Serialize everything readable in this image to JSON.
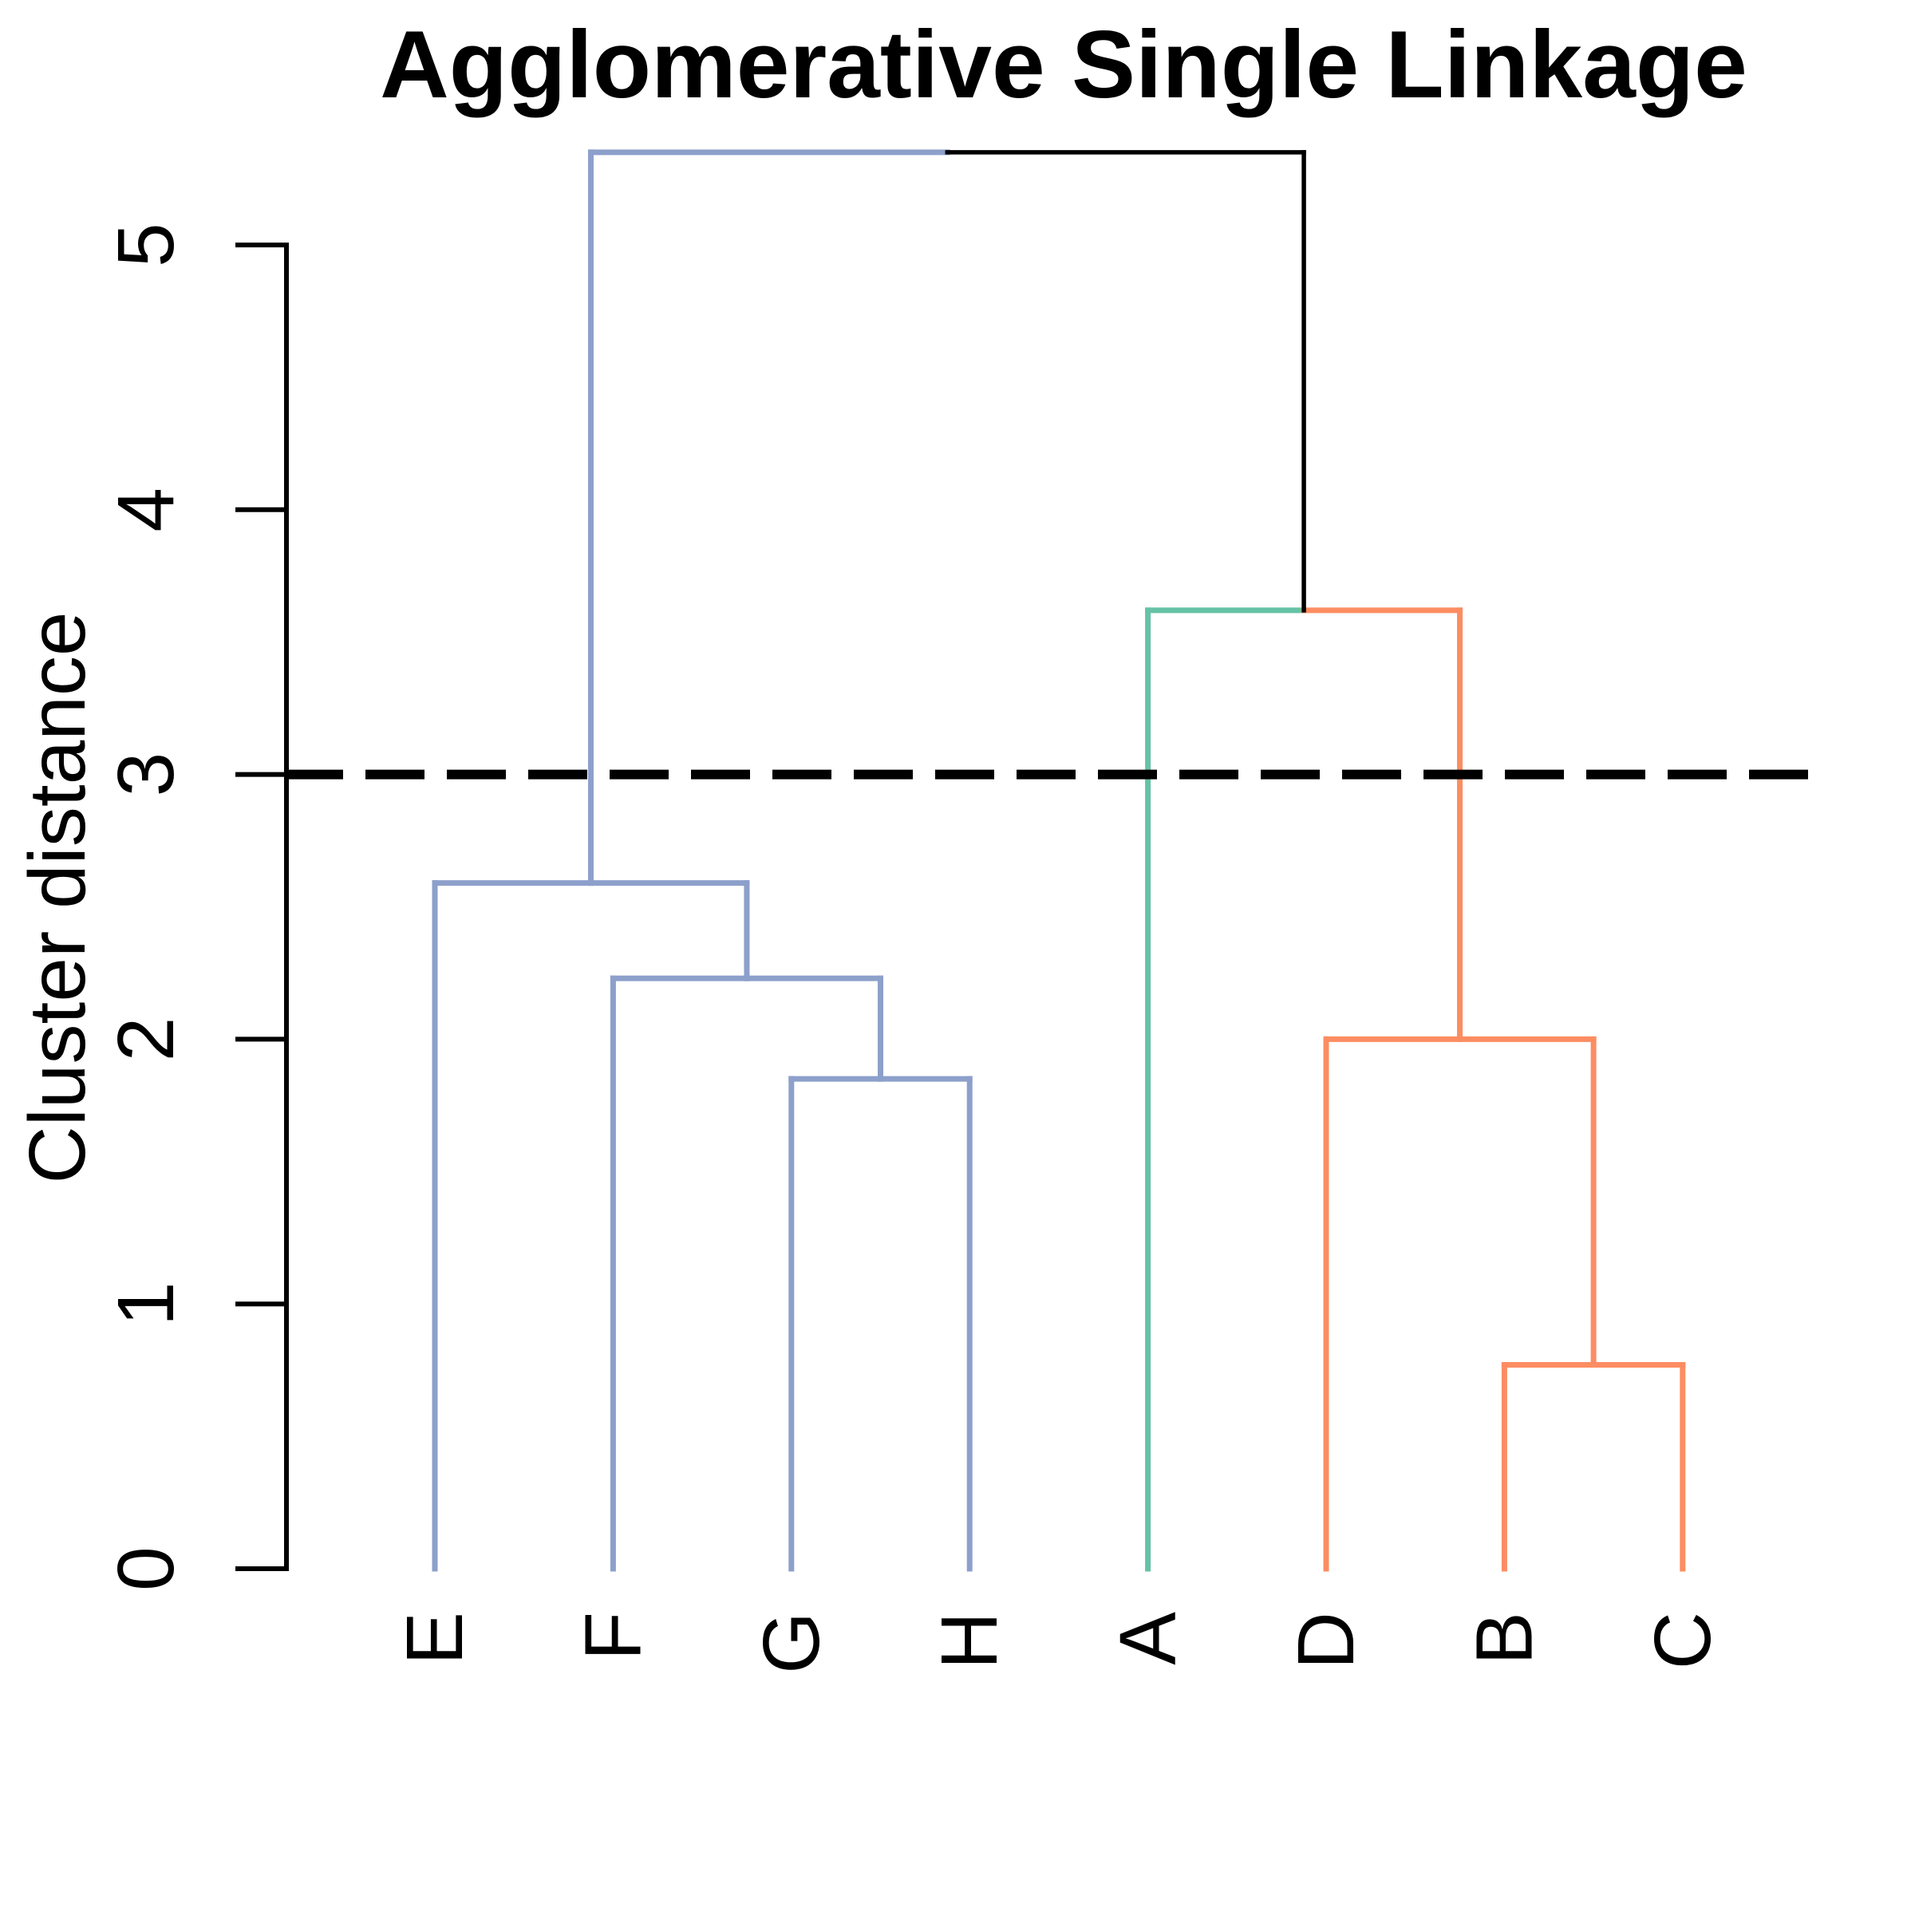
{
  "title": "Agglomerative Single Linkage",
  "y_axis": {
    "label": "Cluster distance",
    "ticks": [
      "0",
      "1",
      "2",
      "3",
      "4",
      "5"
    ]
  },
  "colors": {
    "blue_cluster": "#8DA0CB",
    "green_cluster": "#66C2A5",
    "orange_cluster": "#FC8D62",
    "root_link": "#000000",
    "cut_line": "#000000"
  },
  "chart_data": {
    "type": "dendrogram",
    "title": "Agglomerative Single Linkage",
    "ylabel": "Cluster distance",
    "xlabel": "",
    "yticks": [
      0,
      1,
      2,
      3,
      4,
      5
    ],
    "ylim": [
      0,
      5.5
    ],
    "grid": false,
    "leaf_order": [
      "E",
      "F",
      "G",
      "H",
      "A",
      "D",
      "B",
      "C"
    ],
    "leaves": [
      {
        "label": "E",
        "color": "#8DA0CB"
      },
      {
        "label": "F",
        "color": "#8DA0CB"
      },
      {
        "label": "G",
        "color": "#8DA0CB"
      },
      {
        "label": "H",
        "color": "#8DA0CB"
      },
      {
        "label": "A",
        "color": "#66C2A5"
      },
      {
        "label": "D",
        "color": "#FC8D62"
      },
      {
        "label": "B",
        "color": "#FC8D62"
      },
      {
        "label": "C",
        "color": "#FC8D62"
      }
    ],
    "merges": [
      {
        "id": "GH",
        "children": [
          "G",
          "H"
        ],
        "height": 1.85,
        "color": "#8DA0CB"
      },
      {
        "id": "FGH",
        "children": [
          "F",
          "GH"
        ],
        "height": 2.23,
        "color": "#8DA0CB"
      },
      {
        "id": "EFGH",
        "children": [
          "E",
          "FGH"
        ],
        "height": 2.59,
        "color": "#8DA0CB"
      },
      {
        "id": "BC",
        "children": [
          "B",
          "C"
        ],
        "height": 0.77,
        "color": "#FC8D62"
      },
      {
        "id": "DBC",
        "children": [
          "D",
          "BC"
        ],
        "height": 2.0,
        "color": "#FC8D62"
      },
      {
        "id": "ADBC",
        "children": [
          "A",
          "DBC"
        ],
        "height": 3.62,
        "color": "#000000"
      },
      {
        "id": "ROOT",
        "children": [
          "EFGH",
          "ADBC"
        ],
        "height": 5.35,
        "color": "#000000"
      }
    ],
    "cut_line": {
      "value": 3,
      "style": "dashed",
      "color": "#000000"
    },
    "clusters_at_cut": [
      {
        "members": [
          "E",
          "F",
          "G",
          "H"
        ],
        "color": "#8DA0CB"
      },
      {
        "members": [
          "A"
        ],
        "color": "#66C2A5"
      },
      {
        "members": [
          "D",
          "B",
          "C"
        ],
        "color": "#FC8D62"
      }
    ]
  }
}
